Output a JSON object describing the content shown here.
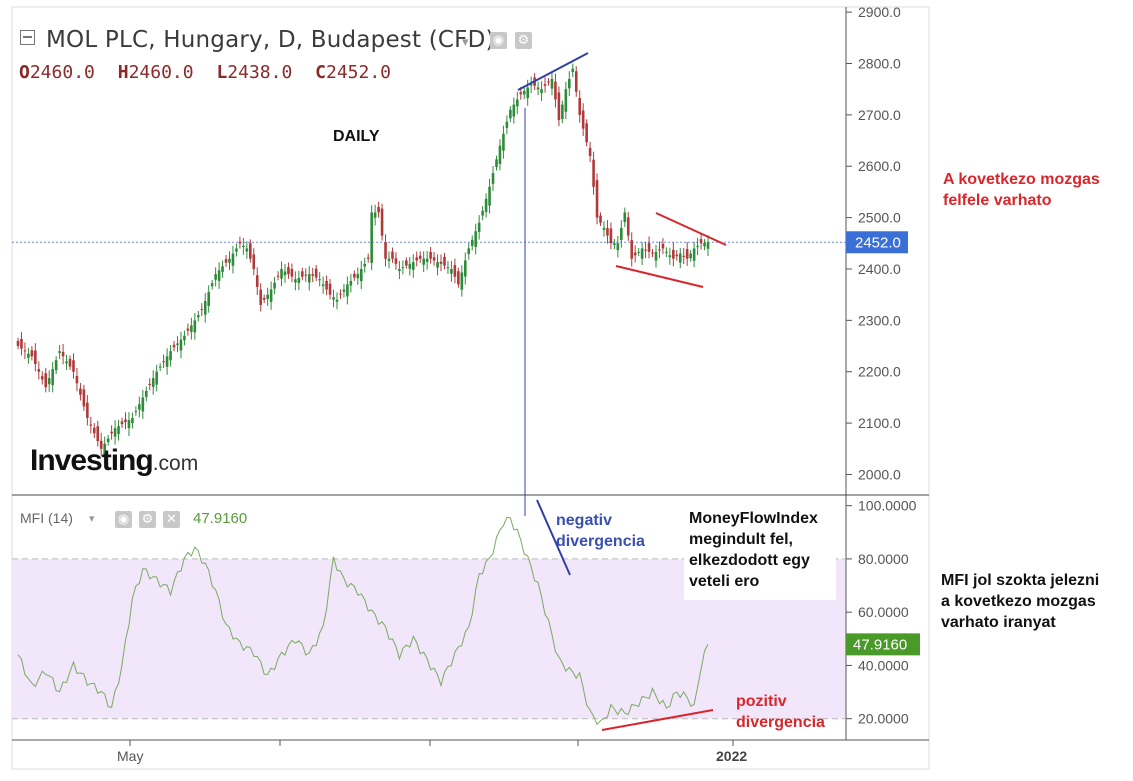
{
  "header": {
    "title": "MOL PLC, Hungary, D, Budapest (CFD)",
    "ohlc": [
      {
        "key": "O",
        "value": "2460.0"
      },
      {
        "key": "H",
        "value": "2460.0"
      },
      {
        "key": "L",
        "value": "2438.0"
      },
      {
        "key": "C",
        "value": "2452.0"
      }
    ]
  },
  "labels": {
    "timeframe": "DAILY",
    "logo_main": "Investing",
    "logo_suffix": ".com",
    "mfi_name": "MFI (14)",
    "mfi_value": "47.9160"
  },
  "annotations": {
    "negative_divergence": [
      "negativ",
      "divergencia"
    ],
    "positive_divergence": [
      "pozitiv",
      "divergencia"
    ],
    "mfi_note": [
      "MoneyFlowIndex",
      "megindult fel,",
      "elkezdodott egy",
      "veteli ero"
    ],
    "next_move": [
      "A kovetkezo mozgas",
      "felfele varhato"
    ],
    "mfi_signals": [
      "MFI jol szokta jelezni",
      "a kovetkezo mozgas",
      "varhato iranyat"
    ]
  },
  "colors": {
    "up": "#2e8b3a",
    "down": "#b03a3a",
    "mfi_line": "#7aaa62",
    "mfi_band": "#f2e6fb",
    "blue_line": "#2f3fa8",
    "red_line": "#d9262b",
    "price_marker": "#3a6fd8",
    "mfi_marker": "#4a9a2a"
  },
  "chart_data": [
    {
      "type": "candlestick",
      "title": "MOL PLC, Hungary, D, Budapest (CFD)",
      "y_ticks": [
        2000,
        2100,
        2200,
        2300,
        2400,
        2500,
        2600,
        2700,
        2800,
        2900
      ],
      "y_tick_labels": [
        "2000.0",
        "2100.0",
        "2200.0",
        "2300.0",
        "2400.0",
        "2500.0",
        "2600.0",
        "2700.0",
        "2800.0",
        "2900.0"
      ],
      "ylim": [
        1960,
        2910
      ],
      "last_price": 2452,
      "last_price_label": "2452.0",
      "x_labels": [
        "May",
        "2022"
      ],
      "anchors": [
        [
          0,
          2250
        ],
        [
          4,
          2230
        ],
        [
          8,
          2170
        ],
        [
          12,
          2240
        ],
        [
          16,
          2200
        ],
        [
          20,
          2110
        ],
        [
          24,
          2050
        ],
        [
          28,
          2090
        ],
        [
          33,
          2110
        ],
        [
          36,
          2150
        ],
        [
          40,
          2200
        ],
        [
          44,
          2240
        ],
        [
          48,
          2270
        ],
        [
          53,
          2320
        ],
        [
          57,
          2390
        ],
        [
          61,
          2420
        ],
        [
          64,
          2450
        ],
        [
          66,
          2440
        ],
        [
          68,
          2400
        ],
        [
          70,
          2330
        ],
        [
          73,
          2360
        ],
        [
          76,
          2400
        ],
        [
          80,
          2380
        ],
        [
          84,
          2390
        ],
        [
          87,
          2380
        ],
        [
          90,
          2350
        ],
        [
          92,
          2340
        ],
        [
          95,
          2370
        ],
        [
          98,
          2390
        ],
        [
          101,
          2420
        ],
        [
          102,
          2510
        ],
        [
          104,
          2510
        ],
        [
          106,
          2420
        ],
        [
          108,
          2420
        ],
        [
          110,
          2400
        ],
        [
          113,
          2410
        ],
        [
          116,
          2420
        ],
        [
          119,
          2420
        ],
        [
          122,
          2410
        ],
        [
          125,
          2400
        ],
        [
          127,
          2370
        ],
        [
          130,
          2440
        ],
        [
          133,
          2490
        ],
        [
          136,
          2560
        ],
        [
          139,
          2640
        ],
        [
          142,
          2710
        ],
        [
          145,
          2740
        ],
        [
          148,
          2760
        ],
        [
          151,
          2750
        ],
        [
          154,
          2770
        ],
        [
          156,
          2690
        ],
        [
          158,
          2750
        ],
        [
          160,
          2790
        ],
        [
          162,
          2700
        ],
        [
          165,
          2620
        ],
        [
          167,
          2500
        ],
        [
          169,
          2480
        ],
        [
          171,
          2450
        ],
        [
          173,
          2450
        ],
        [
          175,
          2510
        ],
        [
          177,
          2420
        ],
        [
          180,
          2440
        ],
        [
          183,
          2430
        ],
        [
          186,
          2440
        ],
        [
          189,
          2420
        ],
        [
          191,
          2430
        ],
        [
          193,
          2420
        ],
        [
          195,
          2440
        ],
        [
          197,
          2450
        ],
        [
          199,
          2452
        ]
      ],
      "n_candles": 200
    },
    {
      "type": "line",
      "name": "MFI (14)",
      "y_ticks": [
        20,
        40,
        60,
        80,
        100
      ],
      "y_tick_labels": [
        "20.0000",
        "40.0000",
        "60.0000",
        "80.0000",
        "100.0000"
      ],
      "ylim": [
        12,
        104
      ],
      "band": [
        20,
        80
      ],
      "last_value": 47.916,
      "last_value_label": "47.9160",
      "anchors": [
        [
          0,
          44
        ],
        [
          4,
          32
        ],
        [
          8,
          38
        ],
        [
          12,
          30
        ],
        [
          16,
          40
        ],
        [
          20,
          34
        ],
        [
          24,
          30
        ],
        [
          27,
          24
        ],
        [
          30,
          40
        ],
        [
          33,
          65
        ],
        [
          36,
          76
        ],
        [
          40,
          72
        ],
        [
          44,
          68
        ],
        [
          48,
          80
        ],
        [
          51,
          84
        ],
        [
          54,
          78
        ],
        [
          57,
          68
        ],
        [
          60,
          55
        ],
        [
          64,
          48
        ],
        [
          68,
          45
        ],
        [
          72,
          36
        ],
        [
          76,
          44
        ],
        [
          80,
          50
        ],
        [
          84,
          44
        ],
        [
          88,
          54
        ],
        [
          91,
          80
        ],
        [
          94,
          72
        ],
        [
          98,
          68
        ],
        [
          102,
          60
        ],
        [
          106,
          54
        ],
        [
          110,
          44
        ],
        [
          114,
          50
        ],
        [
          118,
          42
        ],
        [
          122,
          34
        ],
        [
          126,
          44
        ],
        [
          130,
          54
        ],
        [
          133,
          74
        ],
        [
          136,
          80
        ],
        [
          140,
          94
        ],
        [
          142,
          95
        ],
        [
          144,
          90
        ],
        [
          147,
          80
        ],
        [
          150,
          70
        ],
        [
          153,
          56
        ],
        [
          156,
          42
        ],
        [
          159,
          38
        ],
        [
          162,
          36
        ],
        [
          165,
          22
        ],
        [
          168,
          18
        ],
        [
          171,
          24
        ],
        [
          175,
          22
        ],
        [
          179,
          26
        ],
        [
          183,
          30
        ],
        [
          187,
          24
        ],
        [
          190,
          30
        ],
        [
          193,
          28
        ],
        [
          195,
          24
        ],
        [
          197,
          40
        ],
        [
          199,
          47.916
        ]
      ],
      "n_points": 200
    }
  ]
}
